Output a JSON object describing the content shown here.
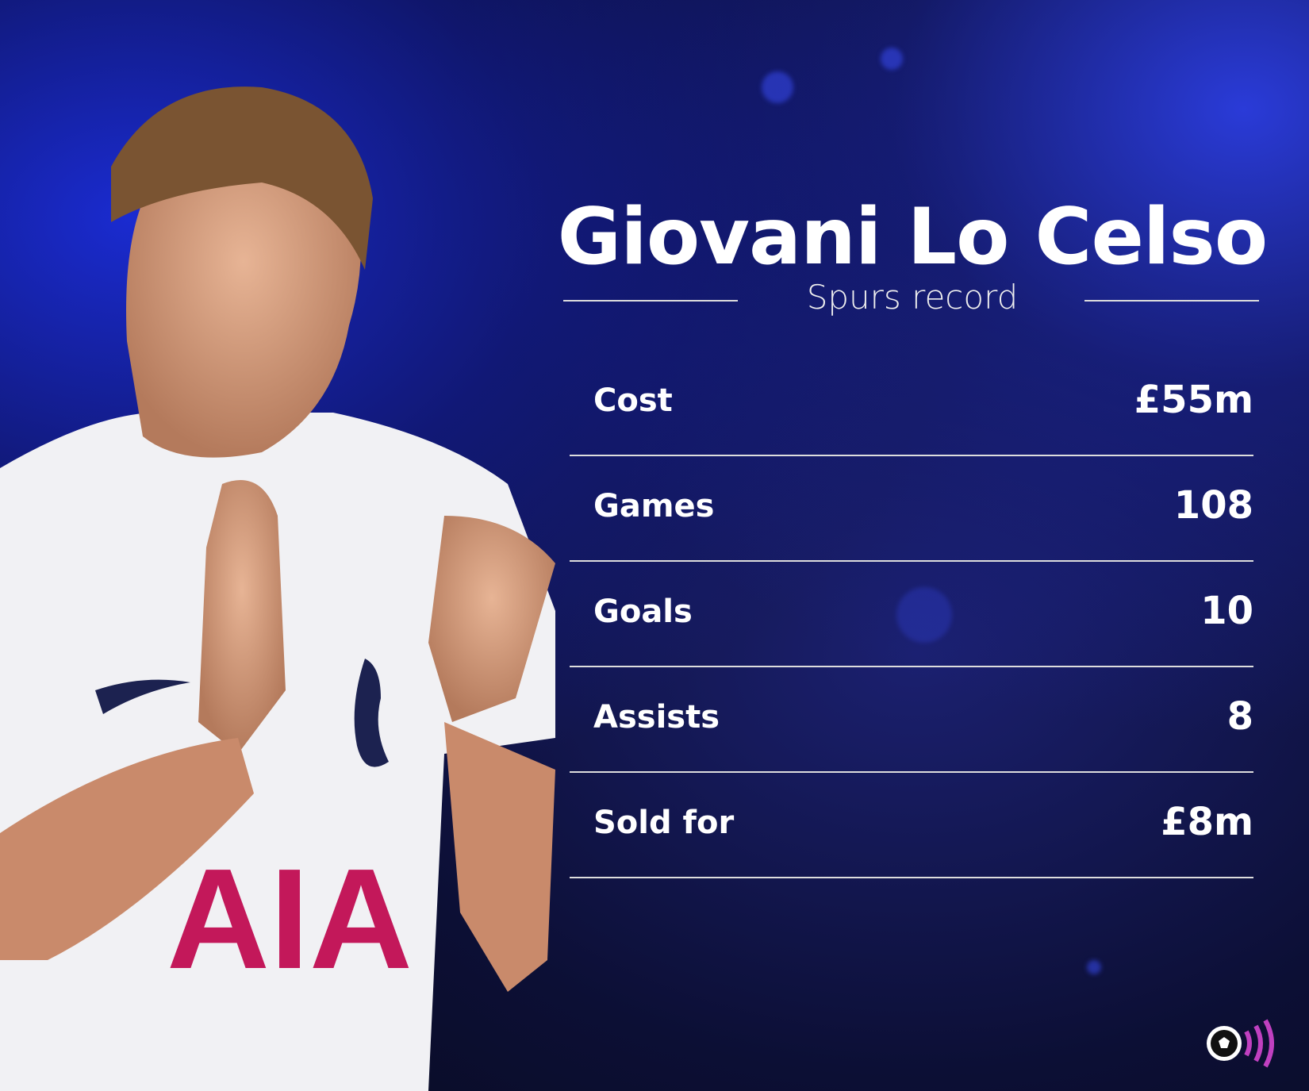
{
  "title": "Giovani Lo Celso",
  "subtitle": "Spurs record",
  "stats": [
    {
      "label": "Cost",
      "value": "£55m"
    },
    {
      "label": "Games",
      "value": "108"
    },
    {
      "label": "Goals",
      "value": "10"
    },
    {
      "label": "Assists",
      "value": "8"
    },
    {
      "label": "Sold for",
      "value": "£8m"
    }
  ],
  "colors": {
    "logo_accent": "#c040c0",
    "background": "#0c0f35"
  },
  "logo": "football-broadcast-logo"
}
